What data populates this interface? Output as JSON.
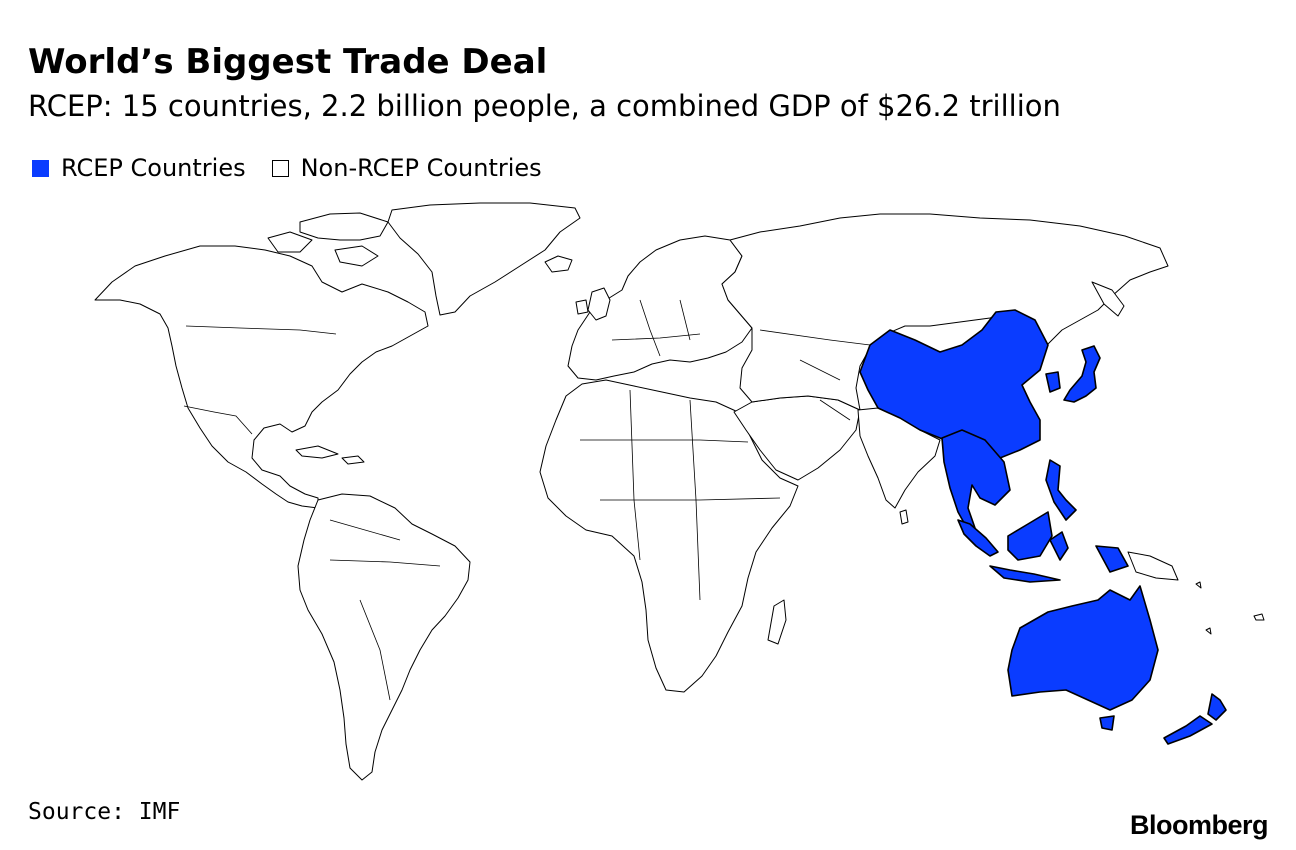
{
  "header": {
    "title": "World’s Biggest Trade Deal",
    "subtitle": "RCEP: 15 countries, 2.2 billion people, a combined GDP of $26.2 trillion"
  },
  "legend": {
    "items": [
      {
        "label": "RCEP Countries",
        "color": "#0a3cff"
      },
      {
        "label": "Non-RCEP Countries",
        "color": "#ffffff"
      }
    ]
  },
  "map": {
    "highlight_color": "#0a3cff",
    "highlighted_countries": [
      "China",
      "Japan",
      "South Korea",
      "Myanmar",
      "Thailand",
      "Laos",
      "Cambodia",
      "Vietnam",
      "Malaysia",
      "Singapore",
      "Indonesia",
      "Brunei",
      "Philippines",
      "Australia",
      "New Zealand"
    ]
  },
  "footer": {
    "source": "Source: IMF",
    "brand": "Bloomberg"
  }
}
